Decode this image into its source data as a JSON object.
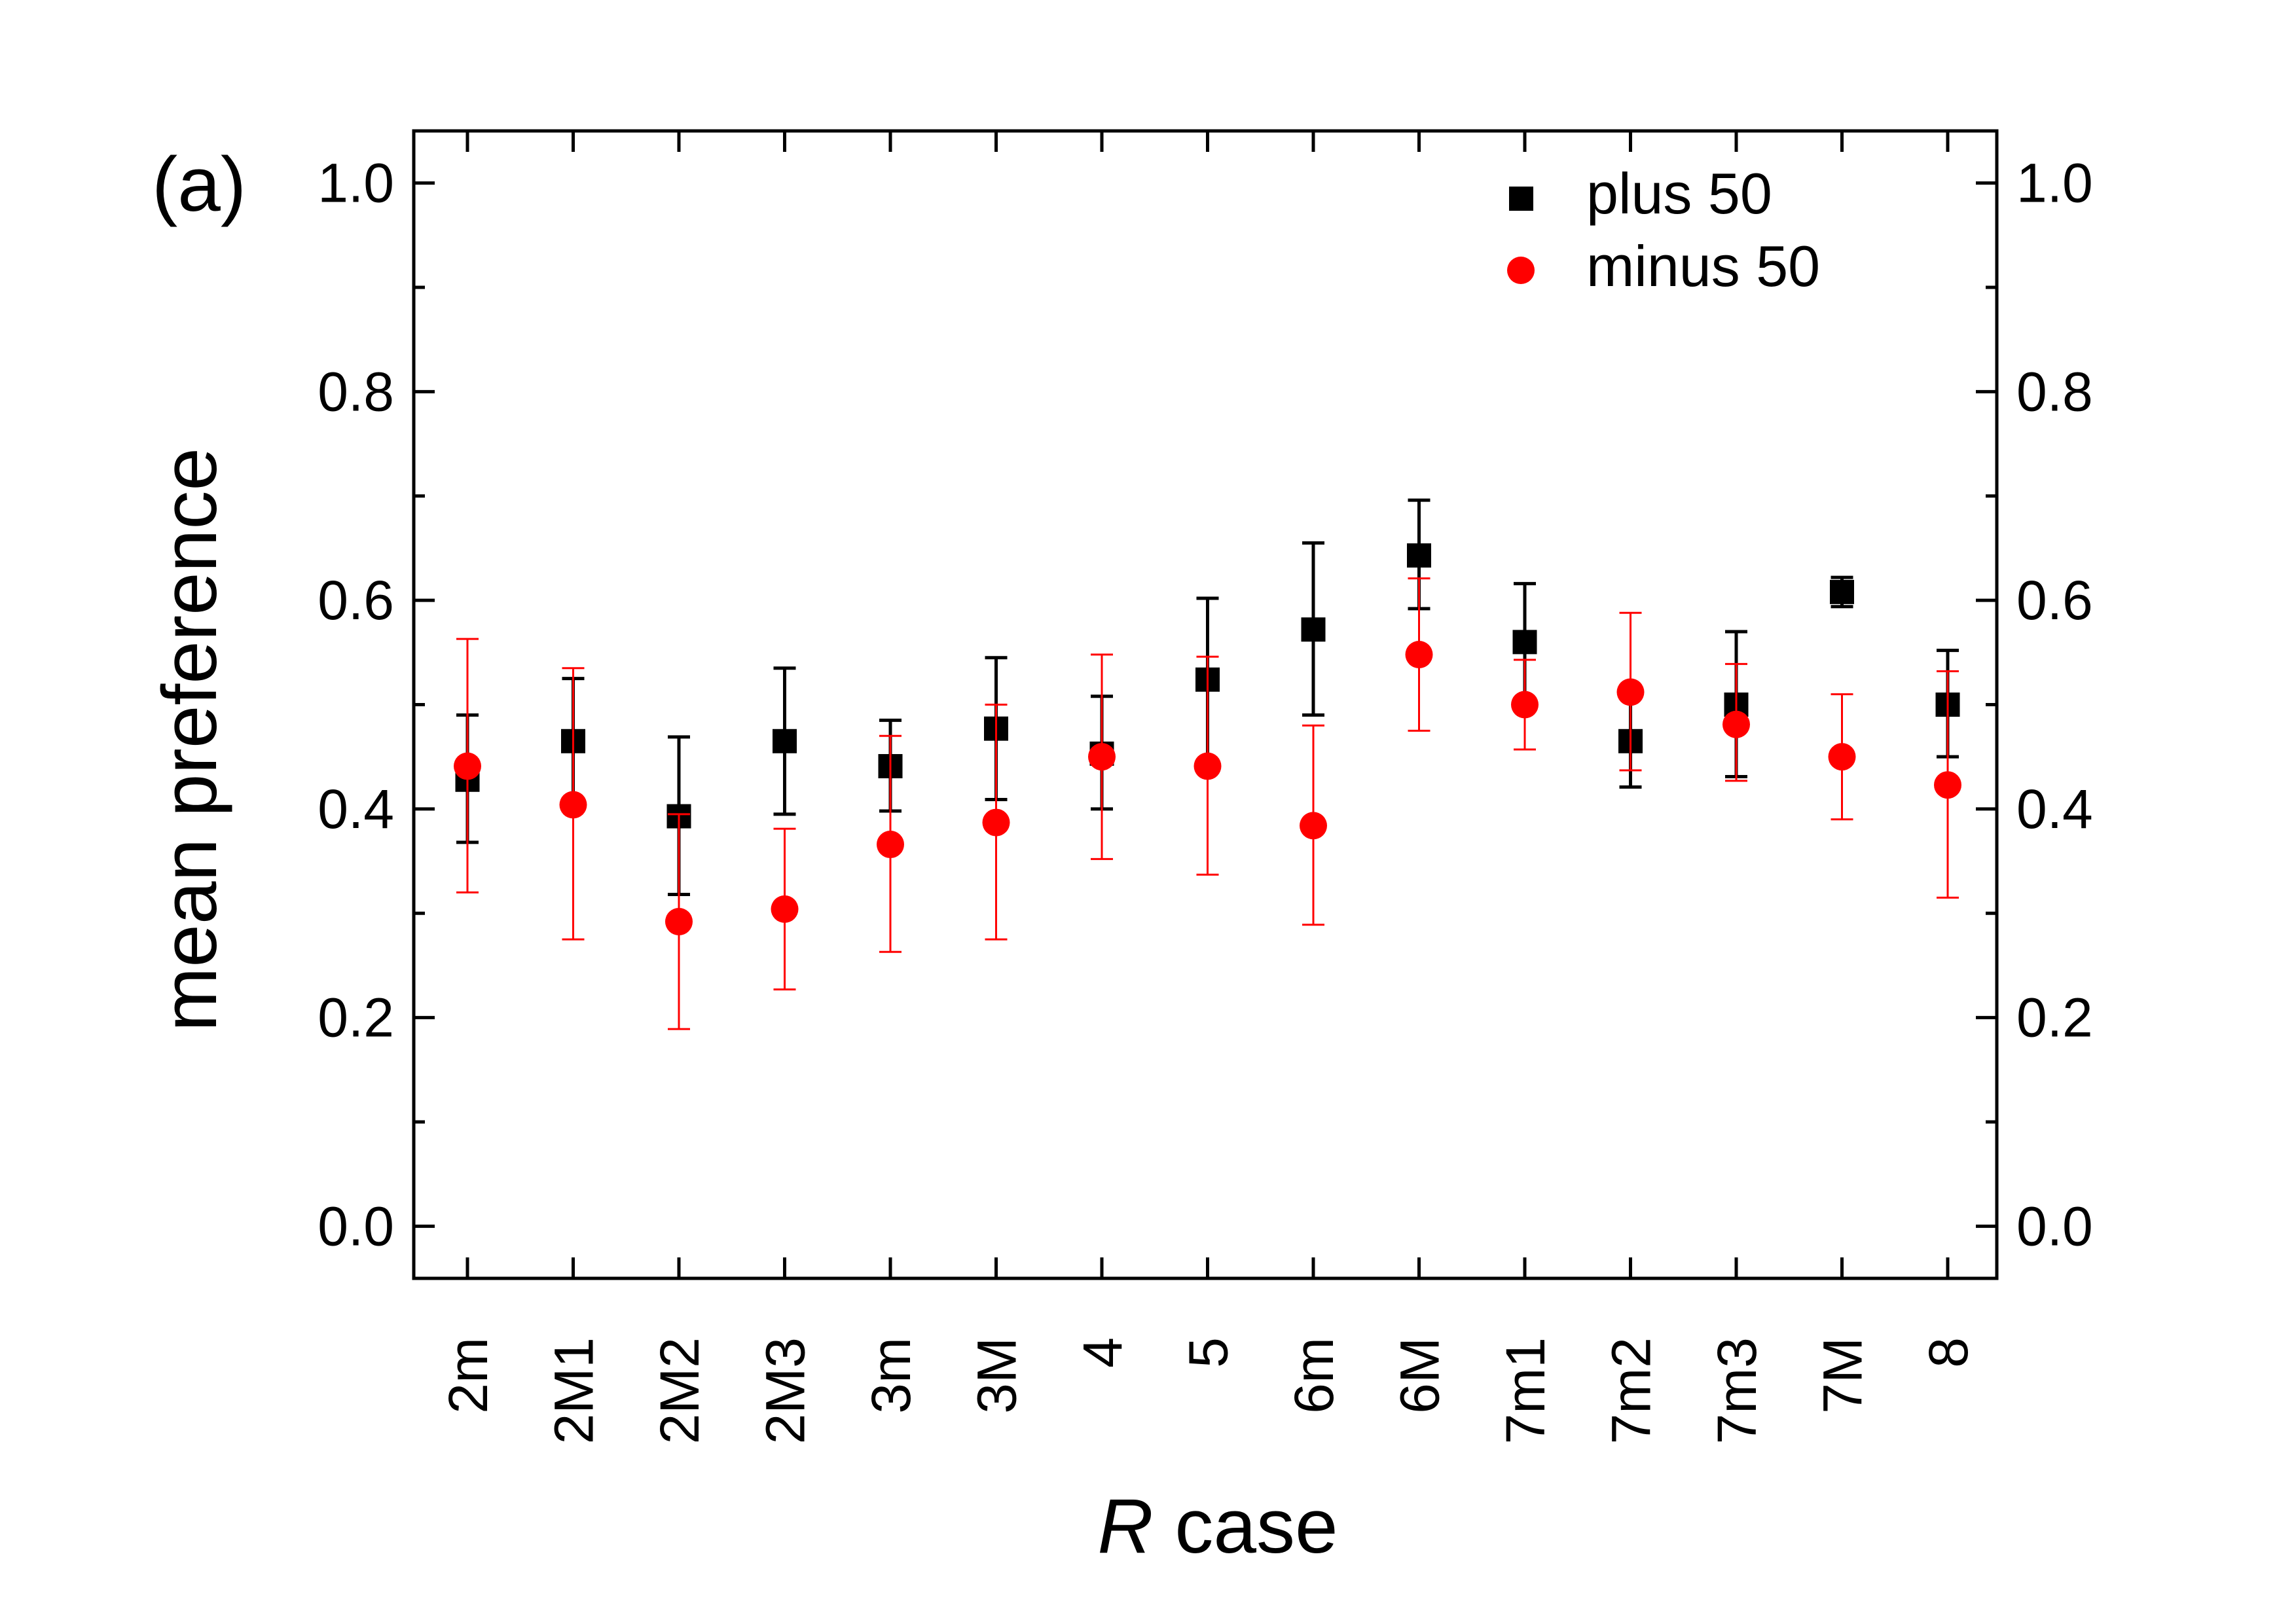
{
  "chart_data": {
    "type": "scatter",
    "panel_label": "(a)",
    "xlabel_italic": "R",
    "xlabel_rest": " case",
    "ylabel": "mean preference",
    "ylim": [
      -0.05,
      1.05
    ],
    "yticks": [
      0.0,
      0.2,
      0.4,
      0.6,
      0.8,
      1.0
    ],
    "ytick_labels": [
      "0.0",
      "0.2",
      "0.4",
      "0.6",
      "0.8",
      "1.0"
    ],
    "categories": [
      "2m",
      "2M1",
      "2M2",
      "2M3",
      "3m",
      "3M",
      "4",
      "5",
      "6m",
      "6M",
      "7m1",
      "7m2",
      "7m3",
      "7M",
      "8"
    ],
    "series": [
      {
        "name": "plus 50",
        "color": "#000000",
        "marker": "square",
        "values": [
          0.428,
          0.465,
          0.393,
          0.465,
          0.441,
          0.477,
          0.453,
          0.524,
          0.572,
          0.643,
          0.56,
          0.465,
          0.5,
          0.608,
          0.5
        ],
        "err_low": [
          0.368,
          0.405,
          0.318,
          0.395,
          0.398,
          0.409,
          0.4,
          0.447,
          0.49,
          0.592,
          0.503,
          0.421,
          0.431,
          0.594,
          0.45
        ],
        "err_high": [
          0.49,
          0.525,
          0.469,
          0.535,
          0.485,
          0.545,
          0.508,
          0.602,
          0.655,
          0.696,
          0.616,
          0.509,
          0.57,
          0.622,
          0.552
        ]
      },
      {
        "name": "minus 50",
        "color": "#ff0000",
        "marker": "circle",
        "values": [
          0.441,
          0.404,
          0.292,
          0.304,
          0.366,
          0.387,
          0.45,
          0.441,
          0.384,
          0.548,
          0.5,
          0.512,
          0.481,
          0.45,
          0.423
        ],
        "err_low": [
          0.32,
          0.275,
          0.189,
          0.227,
          0.263,
          0.275,
          0.352,
          0.337,
          0.289,
          0.475,
          0.457,
          0.437,
          0.427,
          0.39,
          0.315
        ],
        "err_high": [
          0.563,
          0.535,
          0.395,
          0.381,
          0.47,
          0.5,
          0.548,
          0.546,
          0.48,
          0.621,
          0.543,
          0.588,
          0.539,
          0.51,
          0.532
        ]
      }
    ]
  }
}
